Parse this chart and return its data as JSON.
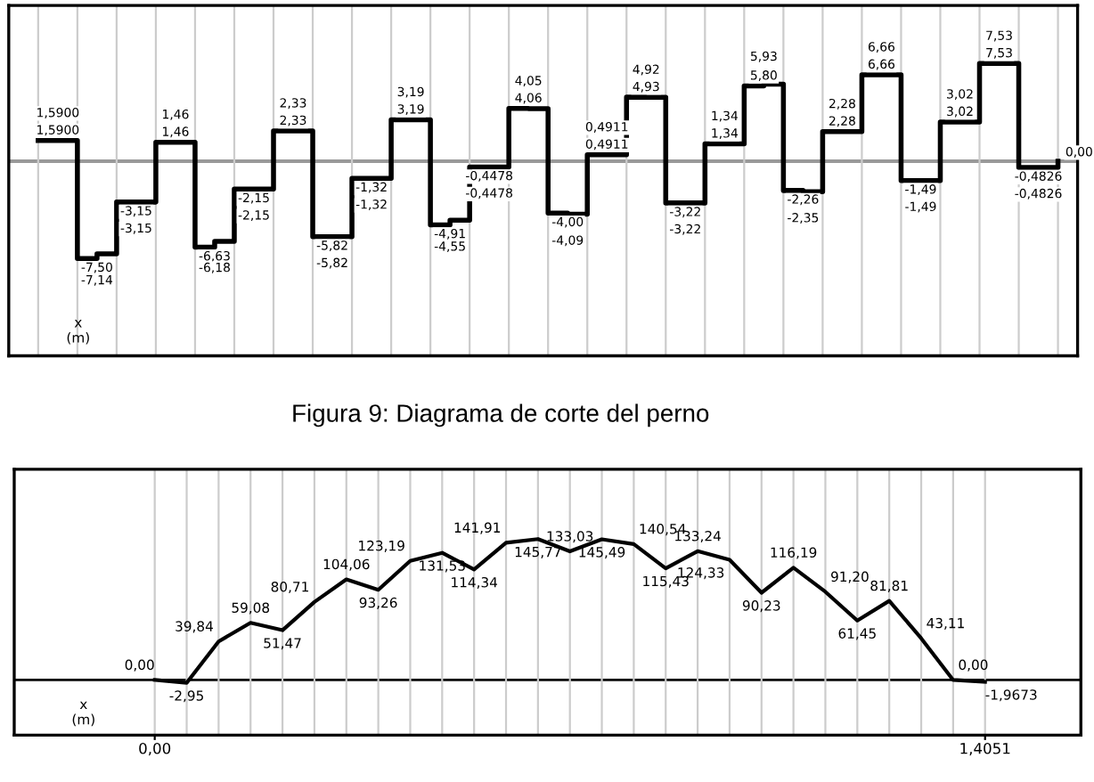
{
  "chart_data": [
    {
      "type": "step",
      "xlabel": "x\n(m)",
      "ylim": [
        -15,
        12
      ],
      "tick_labels": false,
      "grid": "x",
      "categories": [
        null,
        null,
        null,
        null,
        null,
        null,
        null,
        null,
        null,
        null,
        null,
        null,
        null,
        null,
        null,
        null,
        null,
        null,
        null,
        null,
        null,
        null,
        null,
        null,
        null,
        null,
        null,
        null,
        null,
        null,
        null,
        null,
        null,
        null,
        null,
        null,
        null,
        null,
        null,
        null,
        null,
        null,
        null,
        null,
        null,
        null,
        null,
        null,
        null,
        null,
        null,
        null,
        null
      ],
      "series": [
        {
          "color": "#000000",
          "values": [
            1.59,
            1.59,
            -7.5,
            -7.14,
            -3.15,
            -3.15,
            1.46,
            1.46,
            -6.63,
            -6.18,
            -2.15,
            -2.15,
            2.33,
            2.33,
            -5.82,
            -5.82,
            -1.32,
            -1.32,
            3.19,
            3.19,
            -4.91,
            -4.55,
            -0.4478,
            -0.4478,
            4.06,
            4.05,
            -4.0,
            -4.09,
            0.4911,
            0.4911,
            4.93,
            4.92,
            -3.22,
            -3.22,
            1.34,
            1.34,
            5.8,
            5.93,
            -2.26,
            -2.35,
            2.28,
            2.28,
            6.66,
            6.66,
            -1.49,
            -1.49,
            3.02,
            3.02,
            7.53,
            7.53,
            -0.4826,
            -0.4826,
            0.0
          ],
          "value_labels": [
            "1,5900",
            "1,5900",
            "-7,50",
            "-7,14",
            "-3,15",
            "-3,15",
            "1,46",
            "1,46",
            "-6,63",
            "-6,18",
            "-2,15",
            "-2,15",
            "2,33",
            "2,33",
            "-5,82",
            "-5,82",
            "-1,32",
            "-1,32",
            "3,19",
            "3,19",
            "-4,91",
            "-4,55",
            "-0,4478",
            "-0,4478",
            "4,06",
            "4,05",
            "-4,00",
            "-4,09",
            "0,4911",
            "0,4911",
            "4,93",
            "4,92",
            "-3,22",
            "-3,22",
            "1,34",
            "1,34",
            "5,80",
            "5,93",
            "-2,26",
            "-2,35",
            "2,28",
            "2,28",
            "6,66",
            "6,66",
            "-1,49",
            "-1,49",
            "3,02",
            "3,02",
            "7,53",
            "7,53",
            "-0,4826",
            "-0,4826",
            "0,00"
          ]
        }
      ],
      "ref_lines": [
        {
          "axis": "y",
          "value": 0,
          "color": "#999999"
        }
      ],
      "annotations": [
        "Figura 9: Diagrama de corte del perno"
      ]
    },
    {
      "type": "line",
      "xlabel": "x\n(m)",
      "ylim": [
        -57,
        218
      ],
      "tick_labels": "x",
      "grid": "x",
      "categories": [
        "0,00",
        null,
        null,
        null,
        null,
        null,
        null,
        null,
        null,
        null,
        null,
        null,
        null,
        null,
        null,
        null,
        null,
        null,
        null,
        null,
        null,
        null,
        null,
        null,
        null,
        null,
        "1,4051"
      ],
      "series": [
        {
          "color": "#000000",
          "values": [
            0,
            -2.95,
            39.84,
            59.08,
            51.47,
            80.71,
            104.06,
            93.26,
            123.19,
            131.53,
            114.34,
            141.91,
            145.77,
            133.03,
            145.49,
            140.54,
            115.43,
            133.24,
            124.33,
            90.23,
            116.19,
            91.2,
            61.45,
            81.81,
            43.11,
            0.0,
            -1.9673
          ],
          "value_labels": [
            "0,00",
            "-2,95",
            "39,84",
            "59,08",
            "51,47",
            "80,71",
            "104,06",
            "93,26",
            "123,19",
            "131,53",
            "114,34",
            "141,91",
            "145,77",
            "133,03",
            "145,49",
            "140,54",
            "115,43",
            "133,24",
            "124,33",
            "90,23",
            "116,19",
            "91,20",
            "61,45",
            "81,81",
            "43,11",
            "0,00",
            "-1,9673"
          ]
        }
      ],
      "ref_lines": [
        {
          "axis": "y",
          "value": 0,
          "color": "#000000"
        }
      ]
    }
  ]
}
